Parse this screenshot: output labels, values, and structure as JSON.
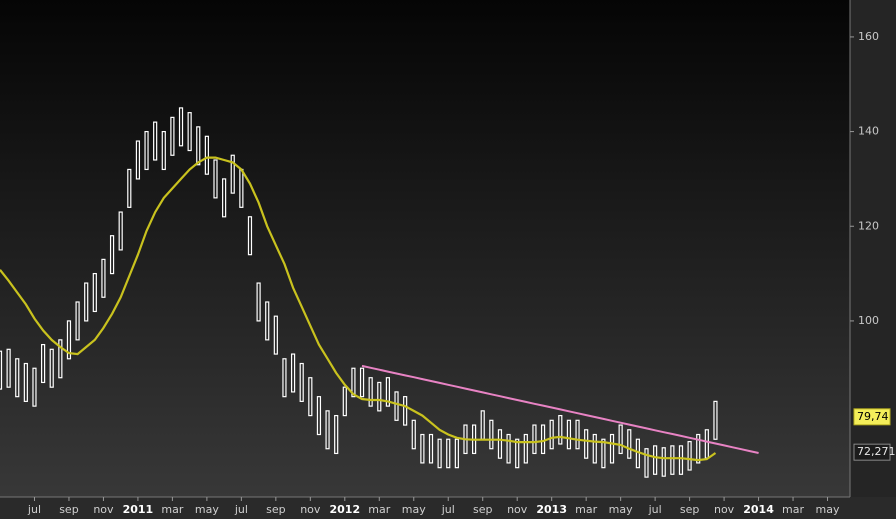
{
  "chart_data": {
    "type": "ohlc",
    "categories": [
      null,
      null,
      null,
      null,
      "jul",
      null,
      null,
      null,
      "sep",
      null,
      null,
      null,
      "nov",
      null,
      null,
      null,
      "2011",
      null,
      null,
      null,
      "mar",
      null,
      null,
      null,
      "may",
      null,
      null,
      null,
      "jul",
      null,
      null,
      null,
      "sep",
      null,
      null,
      null,
      "nov",
      null,
      null,
      null,
      "2012",
      null,
      null,
      null,
      "mar",
      null,
      null,
      null,
      "may",
      null,
      null,
      null,
      "jul",
      null,
      null,
      null,
      "sep",
      null,
      null,
      null,
      "nov",
      null,
      null,
      null,
      "2013",
      null,
      null,
      null,
      "mar",
      null,
      null,
      null,
      "may",
      null,
      null,
      null,
      "jul",
      null,
      null,
      null,
      "sep",
      null,
      null,
      null,
      "nov",
      null,
      null,
      null,
      "2014",
      null,
      null,
      null,
      "mar",
      null,
      null,
      null,
      "may",
      null
    ],
    "high": [
      93.6,
      94,
      92,
      91,
      90,
      95,
      94,
      96,
      100,
      104,
      108,
      110,
      113,
      118,
      123,
      132,
      138,
      140,
      142,
      140,
      143,
      145,
      144,
      141,
      139,
      134,
      130,
      135,
      132,
      122,
      108,
      104,
      101,
      92,
      93,
      91,
      88,
      84,
      81,
      80,
      86,
      90,
      90,
      88,
      87,
      88,
      85,
      84,
      79,
      76,
      76,
      75,
      75,
      75,
      78,
      78,
      81,
      79,
      77,
      76,
      75,
      76,
      78,
      78,
      79,
      80,
      79,
      79,
      77,
      76,
      75,
      76,
      78,
      77,
      75,
      73,
      73.6,
      73.2,
      73.6,
      73.6,
      74.5,
      76,
      77,
      83,
      null,
      null,
      null,
      null,
      null,
      null,
      null,
      null,
      null,
      null,
      null,
      null,
      null,
      null
    ],
    "low": [
      85.6,
      86,
      84,
      83,
      82,
      87,
      86,
      88,
      92,
      96,
      100,
      102,
      105,
      110,
      115,
      124,
      130,
      132,
      134,
      132,
      135,
      137,
      136,
      133,
      131,
      126,
      122,
      127,
      124,
      114,
      100,
      96,
      93,
      84,
      85,
      83,
      80,
      76,
      73,
      72,
      80,
      84,
      84,
      82,
      81,
      82,
      79,
      78,
      73,
      70,
      70,
      69,
      69,
      69,
      72,
      72,
      75,
      73,
      71,
      70,
      69,
      70,
      72,
      72,
      73,
      74,
      73,
      73,
      71,
      70,
      69,
      70,
      72,
      71,
      69,
      67,
      67.6,
      67.2,
      67.6,
      67.6,
      68.5,
      70,
      71,
      75,
      null,
      null,
      null,
      null,
      null,
      null,
      null,
      null,
      null,
      null,
      null,
      null,
      null,
      null
    ],
    "bar_color": "#ffffff",
    "moving_average": {
      "color": "#c9c21e",
      "values": [
        110.8,
        108.5,
        106,
        103.5,
        100.5,
        98,
        96,
        94.5,
        93.2,
        93,
        94.5,
        96,
        98.5,
        101.5,
        105,
        109.5,
        114,
        119,
        123,
        126,
        128,
        130,
        132,
        133.5,
        134.5,
        134.5,
        134,
        133.5,
        132,
        129,
        125,
        120,
        116,
        112,
        107,
        103,
        99,
        95,
        92,
        89,
        86.5,
        84.5,
        83.5,
        83.3,
        83.3,
        83,
        82.5,
        82,
        81,
        80,
        78.5,
        77,
        76,
        75.3,
        75,
        74.9,
        74.9,
        74.9,
        74.9,
        74.7,
        74.4,
        74.4,
        74.4,
        74.6,
        75.3,
        75.5,
        75.2,
        74.9,
        74.7,
        74.5,
        74.4,
        74.1,
        73.8,
        73,
        72.3,
        71.7,
        71.2,
        71,
        71,
        71,
        70.8,
        70.6,
        70.8,
        72.1,
        null,
        null,
        null,
        null,
        null,
        null,
        null,
        null,
        null,
        null,
        null,
        null,
        null,
        null
      ]
    },
    "trendline": {
      "color": "#e883c4",
      "values": [
        null,
        null,
        null,
        null,
        null,
        null,
        null,
        null,
        null,
        null,
        null,
        null,
        null,
        null,
        null,
        null,
        null,
        null,
        null,
        null,
        null,
        null,
        null,
        null,
        null,
        null,
        null,
        null,
        null,
        null,
        null,
        null,
        null,
        null,
        null,
        null,
        null,
        null,
        null,
        null,
        null,
        null,
        90.5,
        90.1,
        89.7,
        89.3,
        88.9,
        88.5,
        88.1,
        87.7,
        87.3,
        86.9,
        86.5,
        86.1,
        85.7,
        85.3,
        84.9,
        84.5,
        84.1,
        83.7,
        83.3,
        82.9,
        82.5,
        82.1,
        81.7,
        81.3,
        80.9,
        80.5,
        80.1,
        79.7,
        79.3,
        78.9,
        78.5,
        78.1,
        77.7,
        77.3,
        76.9,
        76.5,
        76.1,
        75.7,
        75.3,
        74.9,
        74.5,
        74.1,
        73.7,
        73.3,
        72.9,
        72.5,
        72.1,
        null,
        null,
        null,
        null,
        null,
        null,
        null,
        null,
        null
      ]
    },
    "last_price": {
      "value": 79.74,
      "label": "79,74"
    },
    "last_average": {
      "value": 72.271,
      "label": "72,271"
    },
    "ylim": [
      62.8,
      167.8
    ],
    "yticks": [
      100,
      120,
      140,
      160
    ],
    "y_axis_side": "right"
  }
}
